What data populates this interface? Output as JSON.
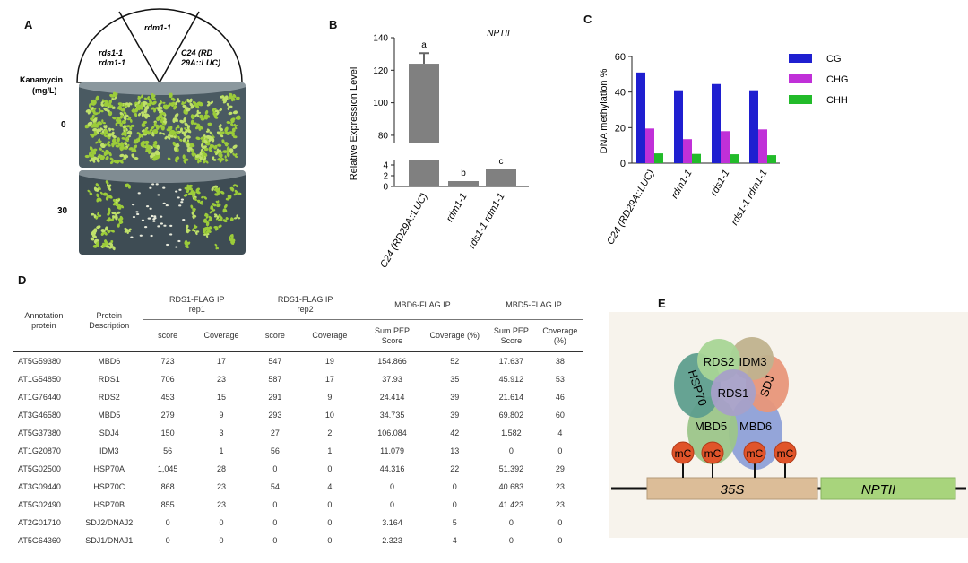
{
  "panels": {
    "a": "A",
    "b": "B",
    "c": "C",
    "d": "D",
    "e": "E"
  },
  "panel_a": {
    "sector_top": "rdm1-1",
    "sector_left": [
      "rds1-1",
      "rdm1-1"
    ],
    "sector_right": [
      "C24 (RD",
      "29A::LUC)"
    ],
    "kan_label": [
      "Kanamycin",
      "(mg/L)"
    ],
    "conc_0": "0",
    "conc_30": "30",
    "plate_color": "#4a5a62",
    "seedling_color": "#9ccc3a"
  },
  "chart_data": [
    {
      "type": "bar",
      "title": "NPTII",
      "ylabel": "Relative Expression Level",
      "categories": [
        "C24 (RD29A::LUC)",
        "rdm1-1",
        "rds1-1 rdm1-1"
      ],
      "values": [
        124,
        1.0,
        3.2
      ],
      "errors": [
        6.5,
        0,
        0
      ],
      "letters": [
        "a",
        "b",
        "c"
      ],
      "axis_break": [
        5,
        75
      ],
      "yticks_lower": [
        "0",
        "2",
        "4"
      ],
      "yticks_upper": [
        "80",
        "100",
        "120",
        "140"
      ],
      "ylim": [
        0,
        140
      ],
      "bar_color": "#808080"
    },
    {
      "type": "bar",
      "ylabel": "DNA methylation %",
      "categories": [
        "C24 (RD29A::LUC)",
        "rdm1-1",
        "rds1-1",
        "rds1-1 rdm1-1"
      ],
      "series": [
        {
          "name": "CG",
          "values": [
            51,
            41,
            44.5,
            41
          ],
          "color": "#1f1fd0"
        },
        {
          "name": "CHG",
          "values": [
            19.5,
            13.5,
            18,
            19
          ],
          "color": "#c030d8"
        },
        {
          "name": "CHH",
          "values": [
            5.5,
            5.2,
            5,
            4.5
          ],
          "color": "#22bb2a"
        }
      ],
      "ylim": [
        0,
        60
      ],
      "yticks": [
        "0",
        "20",
        "40",
        "60"
      ],
      "legend": "top-right"
    }
  ],
  "table": {
    "col1": [
      "Annotation",
      "protein"
    ],
    "col2": [
      "Protein",
      "Description"
    ],
    "groups": [
      [
        "RDS1-FLAG IP",
        "rep1"
      ],
      [
        "RDS1-FLAG IP",
        "rep2"
      ],
      [
        "MBD6-FLAG IP"
      ],
      [
        "MBD5-FLAG IP"
      ]
    ],
    "subheaders": [
      [
        "score"
      ],
      [
        "Coverage"
      ],
      [
        "score"
      ],
      [
        "Coverage"
      ],
      [
        "Sum PEP",
        "Score"
      ],
      [
        "Coverage (%)"
      ],
      [
        "Sum PEP",
        "Score"
      ],
      [
        "Coverage",
        "(%)"
      ]
    ],
    "rows": [
      [
        "AT5G59380",
        "MBD6",
        "723",
        "17",
        "547",
        "19",
        "154.866",
        "52",
        "17.637",
        "38"
      ],
      [
        "AT1G54850",
        "RDS1",
        "706",
        "23",
        "587",
        "17",
        "37.93",
        "35",
        "45.912",
        "53"
      ],
      [
        "AT1G76440",
        "RDS2",
        "453",
        "15",
        "291",
        "9",
        "24.414",
        "39",
        "21.614",
        "46"
      ],
      [
        "AT3G46580",
        "MBD5",
        "279",
        "9",
        "293",
        "10",
        "34.735",
        "39",
        "69.802",
        "60"
      ],
      [
        "AT5G37380",
        "SDJ4",
        "150",
        "3",
        "27",
        "2",
        "106.084",
        "42",
        "1.582",
        "4"
      ],
      [
        "AT1G20870",
        "IDM3",
        "56",
        "1",
        "56",
        "1",
        "11.079",
        "13",
        "0",
        "0"
      ],
      [
        "AT5G02500",
        "HSP70A",
        "1,045",
        "28",
        "0",
        "0",
        "44.316",
        "22",
        "51.392",
        "29"
      ],
      [
        "AT3G09440",
        "HSP70C",
        "868",
        "23",
        "54",
        "4",
        "0",
        "0",
        "40.683",
        "23"
      ],
      [
        "AT5G02490",
        "HSP70B",
        "855",
        "23",
        "0",
        "0",
        "0",
        "0",
        "41.423",
        "23"
      ],
      [
        "AT2G01710",
        "SDJ2/DNAJ2",
        "0",
        "0",
        "0",
        "0",
        "3.164",
        "5",
        "0",
        "0"
      ],
      [
        "AT5G64360",
        "SDJ1/DNAJ1",
        "0",
        "0",
        "0",
        "0",
        "2.323",
        "4",
        "0",
        "0"
      ]
    ]
  },
  "panel_e": {
    "rds2": "RDS2",
    "idm3": "IDM3",
    "hsp70": "HSP70",
    "rds1": "RDS1",
    "sdj": "SDJ",
    "mbd5": "MBD5",
    "mbd6": "MBD6",
    "mc": "mC",
    "promoter": "35S",
    "gene": "NPTII",
    "colors": {
      "rds2": "#a8d596",
      "idm3": "#c0b28e",
      "hsp70": "#5e9e8e",
      "rds1": "#a6a0c8",
      "sdj": "#e8967a",
      "mbd5": "#9cc58a",
      "mbd6": "#8ea0d8",
      "mc": "#e0542a",
      "promoter": "#dcbd98",
      "gene": "#a8d47c",
      "background": "#f7f3ec"
    }
  }
}
